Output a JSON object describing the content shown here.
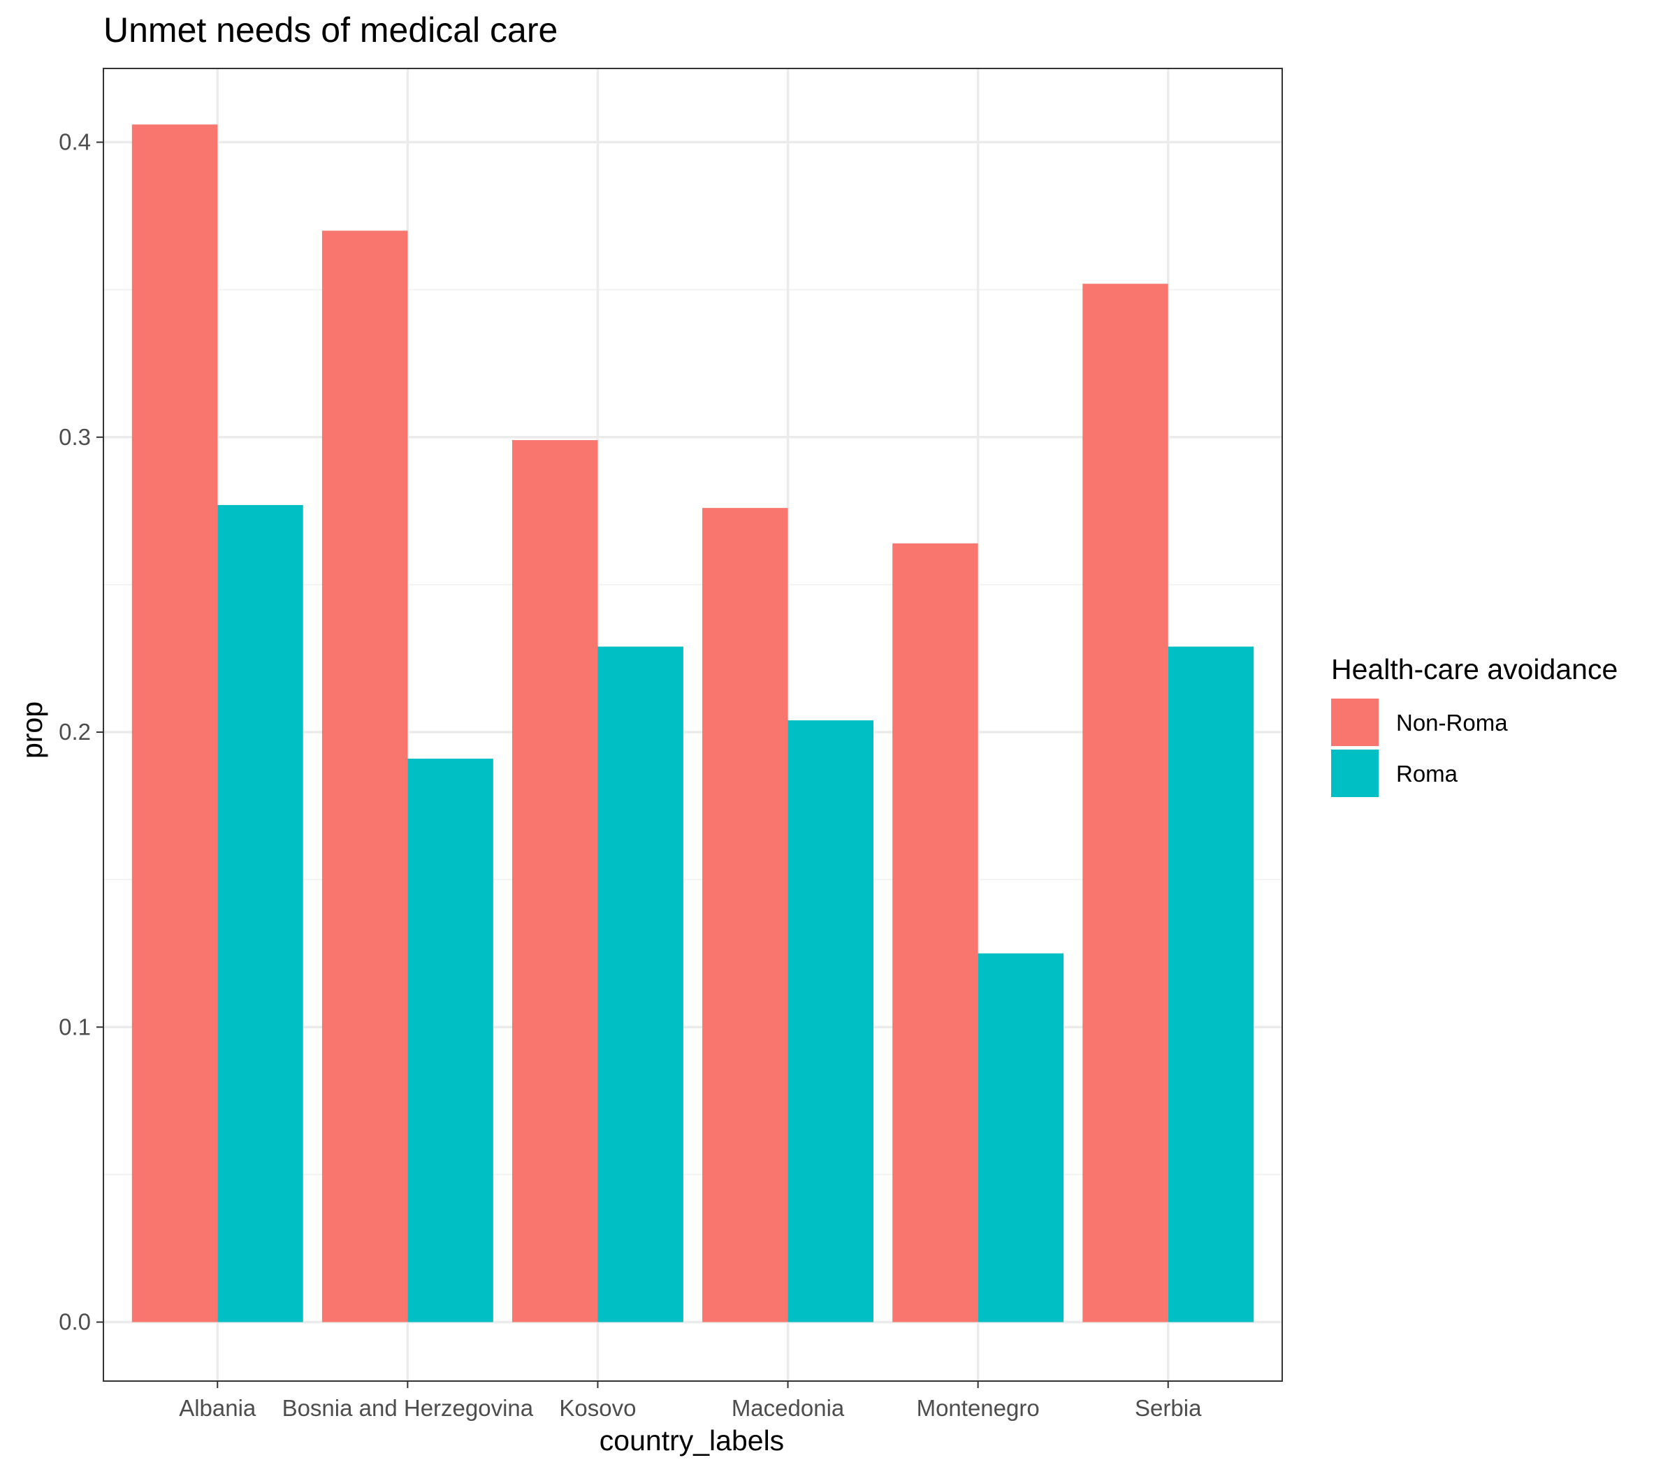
{
  "chart_data": {
    "type": "bar",
    "title": "Unmet needs of medical care",
    "xlabel": "country_labels",
    "ylabel": "prop",
    "categories": [
      "Albania",
      "Bosnia and Herzegovina",
      "Kosovo",
      "Macedonia",
      "Montenegro",
      "Serbia"
    ],
    "series": [
      {
        "name": "Non-Roma",
        "color": "#F8766D",
        "values": [
          0.406,
          0.37,
          0.299,
          0.276,
          0.264,
          0.352
        ]
      },
      {
        "name": "Roma",
        "color": "#00BFC4",
        "values": [
          0.277,
          0.191,
          0.229,
          0.204,
          0.125,
          0.229
        ]
      }
    ],
    "ylim": [
      -0.02,
      0.425
    ],
    "yticks": [
      "0.0",
      "0.1",
      "0.2",
      "0.3",
      "0.4"
    ],
    "ytick_values": [
      0.0,
      0.1,
      0.2,
      0.3,
      0.4
    ],
    "grid": true,
    "legend": {
      "title": "Health-care avoidance",
      "position": "right"
    }
  }
}
